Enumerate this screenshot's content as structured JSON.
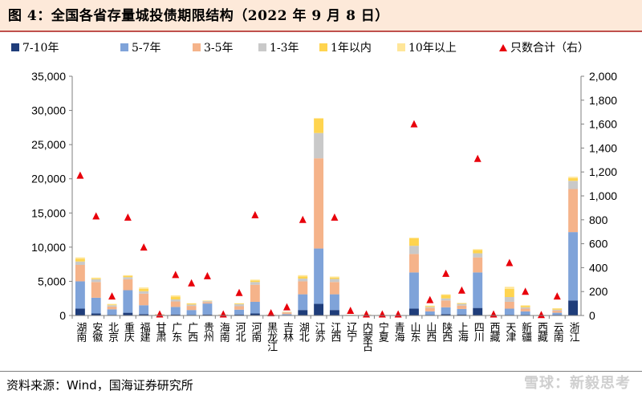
{
  "header": {
    "title": "图 4：全国各省存量城投债期限结构（2022 年 9 月 8 日）"
  },
  "footer": {
    "source": "资料来源：Wind，国海证券研究所",
    "watermark": "雪球：新毅思考"
  },
  "colors": {
    "7-10": "#1f3d7a",
    "5-7": "#7fa3d9",
    "3-5": "#f5b38a",
    "1-3": "#c9c9c9",
    "lt1": "#ffd44f",
    "gt10": "#ffe699",
    "count": "#e8000b"
  },
  "chart_data": {
    "type": "bar",
    "stacked": true,
    "categories": [
      "湖南",
      "安徽",
      "北京",
      "重庆",
      "福建",
      "甘肃",
      "广东",
      "广西",
      "贵州",
      "海南",
      "河北",
      "河南",
      "黑龙江",
      "吉林",
      "湖北",
      "江苏",
      "江西",
      "辽宁",
      "内蒙古",
      "宁夏",
      "青海",
      "山东",
      "山西",
      "陕西",
      "上海",
      "四川",
      "西藏",
      "天津",
      "新疆",
      "西藏",
      "云南",
      "浙江"
    ],
    "series": [
      {
        "name": "7-10年",
        "color_key": "7-10",
        "values": [
          1000,
          300,
          100,
          400,
          200,
          0,
          150,
          100,
          150,
          20,
          150,
          300,
          20,
          0,
          800,
          1700,
          800,
          0,
          0,
          0,
          0,
          1000,
          100,
          200,
          150,
          1100,
          0,
          100,
          100,
          0,
          100,
          2200
        ]
      },
      {
        "name": "5-7年",
        "color_key": "5-7",
        "values": [
          4000,
          2300,
          800,
          3300,
          1300,
          80,
          1100,
          700,
          1600,
          50,
          700,
          1700,
          40,
          200,
          2300,
          8100,
          2300,
          30,
          50,
          20,
          20,
          5300,
          500,
          1000,
          800,
          5200,
          30,
          900,
          500,
          20,
          300,
          10000
        ]
      },
      {
        "name": "3-5年",
        "color_key": "3-5",
        "values": [
          2400,
          2300,
          400,
          1600,
          1700,
          70,
          800,
          600,
          200,
          50,
          500,
          2500,
          40,
          250,
          1900,
          13200,
          1800,
          40,
          40,
          40,
          20,
          2700,
          500,
          1000,
          500,
          2200,
          40,
          1000,
          400,
          30,
          300,
          6300
        ]
      },
      {
        "name": "1-3年",
        "color_key": "1-3",
        "values": [
          500,
          400,
          200,
          300,
          350,
          20,
          300,
          200,
          150,
          20,
          300,
          400,
          20,
          60,
          400,
          3700,
          450,
          20,
          30,
          20,
          10,
          1200,
          150,
          300,
          250,
          600,
          20,
          700,
          200,
          20,
          150,
          1200
        ]
      },
      {
        "name": "1年以内",
        "color_key": "lt1",
        "values": [
          400,
          100,
          100,
          200,
          350,
          20,
          400,
          150,
          50,
          10,
          100,
          200,
          10,
          30,
          300,
          2100,
          200,
          10,
          20,
          10,
          5,
          1100,
          100,
          500,
          100,
          500,
          10,
          1200,
          200,
          10,
          150,
          400
        ]
      },
      {
        "name": "10年以上",
        "color_key": "gt10",
        "values": [
          200,
          150,
          100,
          100,
          200,
          10,
          200,
          50,
          50,
          5,
          50,
          150,
          5,
          20,
          200,
          100,
          150,
          5,
          5,
          5,
          5,
          100,
          100,
          100,
          50,
          100,
          5,
          300,
          100,
          5,
          50,
          200
        ]
      }
    ],
    "scatter": {
      "name": "只数合计（右）",
      "values": [
        1170,
        830,
        160,
        820,
        570,
        10,
        340,
        270,
        330,
        10,
        190,
        840,
        20,
        70,
        800,
        0,
        820,
        40,
        10,
        10,
        10,
        1600,
        130,
        350,
        210,
        1310,
        10,
        440,
        200,
        5,
        160,
        0
      ]
    },
    "y_left": {
      "min": 0,
      "max": 35000,
      "ticks": [
        "0",
        "5,000",
        "10,000",
        "15,000",
        "20,000",
        "25,000",
        "30,000",
        "35,000"
      ]
    },
    "y_right": {
      "min": 0,
      "max": 2000,
      "ticks": [
        "0",
        "200",
        "400",
        "600",
        "800",
        "1,000",
        "1,200",
        "1,400",
        "1,600",
        "1,800",
        "2,000"
      ]
    },
    "legend_position": "top",
    "grid": false
  }
}
